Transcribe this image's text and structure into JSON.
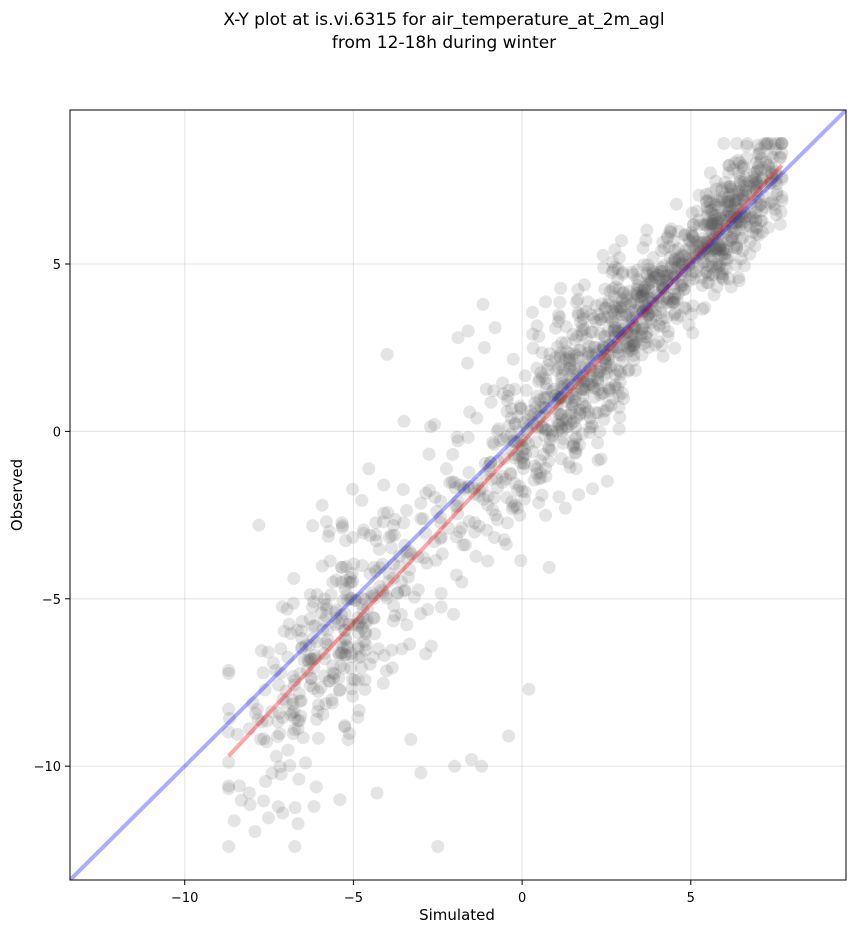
{
  "chart_data": {
    "type": "scatter",
    "title": "X-Y plot at is.vi.6315 for air_temperature_at_2m_agl",
    "subtitle": "from 12-18h during winter",
    "xlabel": "Simulated",
    "ylabel": "Observed",
    "xlim": [
      -13.4,
      9.6
    ],
    "ylim": [
      -13.4,
      9.6
    ],
    "xticks": [
      -10,
      -5,
      0,
      5
    ],
    "yticks": [
      5,
      0,
      -5,
      -10
    ],
    "xtick_labels": [
      "−10",
      "−5",
      "0",
      "5"
    ],
    "ytick_labels": [
      "5",
      "0",
      "−5",
      "−10"
    ],
    "grid": true,
    "point_color": "#555555",
    "point_alpha": 0.16,
    "identity_line": {
      "x": [
        -13.4,
        9.6
      ],
      "y": [
        -13.4,
        9.6
      ],
      "color": "#0000ff",
      "alpha": 0.32
    },
    "fit_line": {
      "x": [
        -8.7,
        7.7
      ],
      "y": [
        -9.7,
        7.95
      ],
      "color": "#ff0000",
      "alpha": 0.35
    },
    "points_summary": {
      "count": 1500,
      "x_range": [
        -8.7,
        7.7
      ],
      "y_range": [
        -12.4,
        8.6
      ],
      "slope": 1.08,
      "intercept": -0.3
    },
    "points": [
      [
        -7.8,
        -2.8
      ],
      [
        -5.8,
        -2.7
      ],
      [
        -4.1,
        -1.6
      ],
      [
        -1.9,
        2.8
      ],
      [
        -1.6,
        3.0
      ],
      [
        -0.8,
        3.1
      ],
      [
        -4.0,
        2.3
      ],
      [
        -3.5,
        0.3
      ],
      [
        -2.0,
        -10.0
      ],
      [
        -1.2,
        -10.0
      ],
      [
        -2.5,
        -12.4
      ],
      [
        -1.5,
        -9.8
      ],
      [
        -3.3,
        -9.2
      ],
      [
        -3.0,
        -10.2
      ],
      [
        0.2,
        -7.7
      ],
      [
        -0.4,
        -9.1
      ],
      [
        -5.4,
        -11.0
      ],
      [
        -7.1,
        -11.4
      ],
      [
        -4.3,
        -10.8
      ],
      [
        6.4,
        8.1
      ]
    ]
  }
}
